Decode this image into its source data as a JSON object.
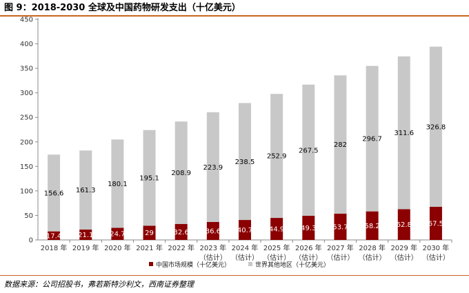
{
  "title": "图 9：2018-2030 全球及中国药物研发支出（十亿美元）",
  "source": "数据来源：公司招股书，弗若斯特沙利文，西南证券整理",
  "colors": {
    "china": "#8b0000",
    "world": "#c8c8c8",
    "rule": "#c9641e"
  },
  "chart_data": {
    "type": "bar",
    "stacked": true,
    "title": "2018-2030 全球及中国药物研发支出（十亿美元）",
    "categories": [
      "2018 年",
      "2019 年",
      "2020 年",
      "2021 年",
      "2022 年",
      "2023 年",
      "2024 年",
      "2025 年",
      "2026 年",
      "2027 年",
      "2028 年",
      "2029 年",
      "2030 年"
    ],
    "category_notes": [
      "",
      "",
      "",
      "",
      "",
      "（估计）",
      "（估计）",
      "（估计）",
      "（估计）",
      "（估计）",
      "（估计）",
      "（估计）",
      "（估计）"
    ],
    "series": [
      {
        "name": "中国市场规模（十亿美元）",
        "values": [
          17.4,
          21.1,
          24.7,
          29,
          32.6,
          36.6,
          40.7,
          44.9,
          49.3,
          53.7,
          58.2,
          62.8,
          67.5
        ]
      },
      {
        "name": "世界其他地区（十亿美元）",
        "values": [
          156.6,
          161.3,
          180.1,
          195.1,
          208.9,
          223.9,
          238.5,
          252.9,
          267.5,
          282,
          296.7,
          311.6,
          326.8
        ]
      }
    ],
    "ylim": [
      0,
      450
    ],
    "yticks": [
      0,
      50,
      100,
      150,
      200,
      250,
      300,
      350,
      400,
      450
    ],
    "xlabel": "",
    "ylabel": "",
    "legend": "bottom-center"
  }
}
